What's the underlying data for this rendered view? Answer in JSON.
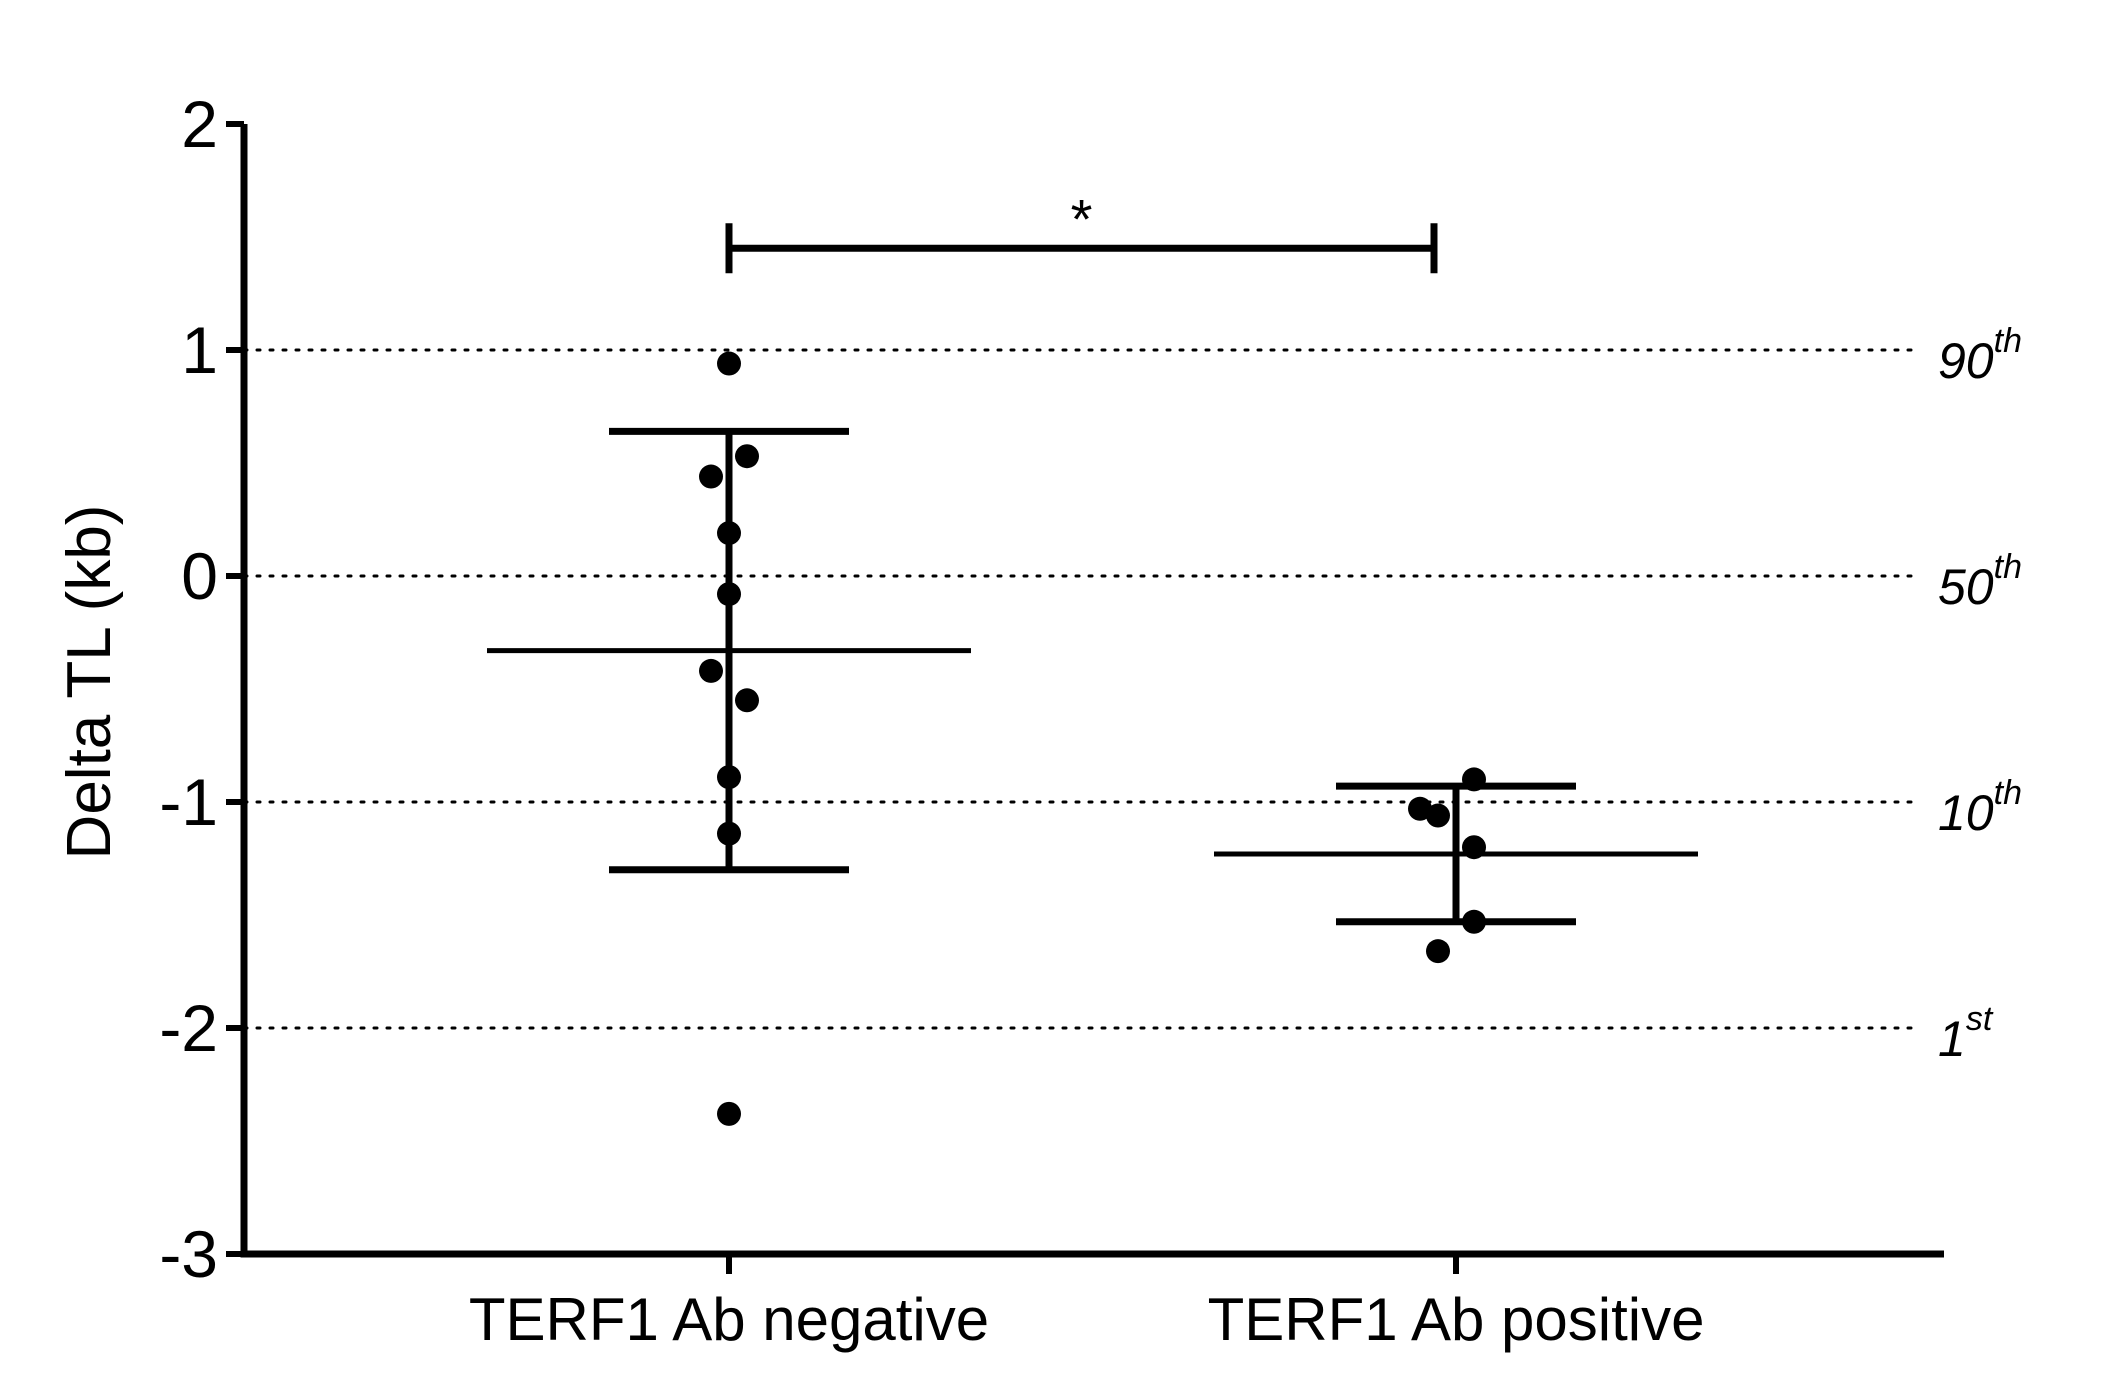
{
  "chart_data": {
    "type": "scatter",
    "ylabel": "Delta TL (kb)",
    "ylim": [
      -3,
      2
    ],
    "yticks": [
      {
        "value": 2,
        "label": "2"
      },
      {
        "value": 1,
        "label": "1"
      },
      {
        "value": 0,
        "label": "0"
      },
      {
        "value": -1,
        "label": "-1"
      },
      {
        "value": -2,
        "label": "-2"
      },
      {
        "value": -3,
        "label": "-3"
      }
    ],
    "categories": [
      "TERF1 Ab negative",
      "TERF1 Ab positive"
    ],
    "groups": [
      {
        "label": "TERF1 Ab negative",
        "points": [
          0.94,
          0.53,
          0.44,
          0.19,
          -0.08,
          -0.42,
          -0.55,
          -0.89,
          -1.14,
          -2.38
        ],
        "mean": -0.33,
        "sd_upper": 0.64,
        "sd_lower": -1.3
      },
      {
        "label": "TERF1 Ab positive",
        "points": [
          -0.9,
          -1.03,
          -1.06,
          -1.2,
          -1.53,
          -1.66
        ],
        "mean": -1.23,
        "sd_upper": -0.93,
        "sd_lower": -1.53
      }
    ],
    "reference_lines": [
      {
        "value": 1,
        "label": "90",
        "suffix": "th"
      },
      {
        "value": 0,
        "label": "50",
        "suffix": "th"
      },
      {
        "value": -1,
        "label": "10",
        "suffix": "th"
      },
      {
        "value": -2,
        "label": "1",
        "suffix": "st"
      }
    ],
    "significance": {
      "label": "*",
      "y": 1.45
    }
  }
}
